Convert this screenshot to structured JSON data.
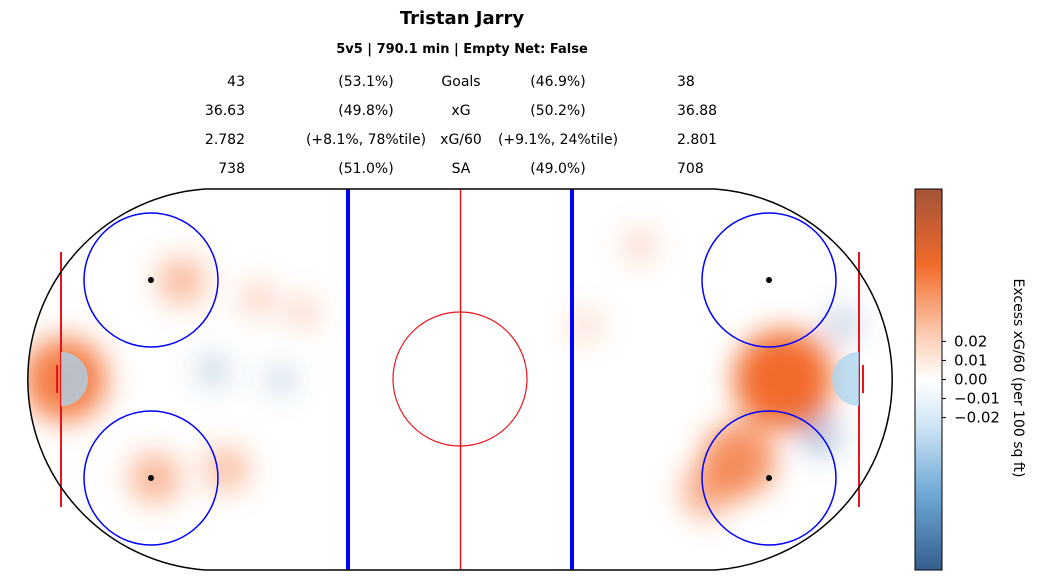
{
  "header": {
    "title": "Tristan Jarry",
    "subtitle": "5v5 | 790.1 min | Empty Net: False"
  },
  "stats": [
    {
      "label": "Goals",
      "left_value": "43",
      "left_pct": "(53.1%)",
      "right_pct": "(46.9%)",
      "right_value": "38"
    },
    {
      "label": "xG",
      "left_value": "36.63",
      "left_pct": "(49.8%)",
      "right_pct": "(50.2%)",
      "right_value": "36.88"
    },
    {
      "label": "xG/60",
      "left_value": "2.782",
      "left_pct": "(+8.1%, 78%tile)",
      "right_pct": "(+9.1%, 24%tile)",
      "right_value": "2.801"
    },
    {
      "label": "SA",
      "left_value": "738",
      "left_pct": "(51.0%)",
      "right_pct": "(49.0%)",
      "right_value": "708"
    }
  ],
  "colors": {
    "rink_outline": "#000000",
    "red_line": "#e8141c",
    "blue_line": "#0000ff",
    "faceoff_circle": "#0000ff",
    "crease": "#a8d4f0",
    "positive": "#f26a2a",
    "negative": "#3b6ea8"
  },
  "chart_data": {
    "type": "heatmap",
    "colorbar": {
      "label": "Excess xG/60 (per 100 sq ft)",
      "ticks": [
        "0.02",
        "0.01",
        "0.00",
        "−0.01",
        "−0.02"
      ],
      "tick_values": [
        0.02,
        0.01,
        0.0,
        -0.01,
        -0.02
      ],
      "range": [
        -0.1,
        0.1
      ]
    },
    "hotspots": [
      {
        "x": -88,
        "y": 0,
        "value": 0.06
      },
      {
        "x": -62,
        "y": 22,
        "value": 0.025
      },
      {
        "x": -68,
        "y": -22,
        "value": 0.028
      },
      {
        "x": -52,
        "y": -20,
        "value": 0.022
      },
      {
        "x": -45,
        "y": 18,
        "value": 0.012
      },
      {
        "x": -35,
        "y": 15,
        "value": 0.01
      },
      {
        "x": 72,
        "y": 0,
        "value": 0.075
      },
      {
        "x": 62,
        "y": -18,
        "value": 0.05
      },
      {
        "x": 55,
        "y": -25,
        "value": 0.03
      },
      {
        "x": 40,
        "y": 30,
        "value": 0.01
      },
      {
        "x": 28,
        "y": 12,
        "value": 0.008
      },
      {
        "x": 80,
        "y": -12,
        "value": -0.02
      },
      {
        "x": 85,
        "y": 12,
        "value": -0.012
      },
      {
        "x": -55,
        "y": 2,
        "value": -0.01
      },
      {
        "x": -40,
        "y": 0,
        "value": -0.008
      }
    ]
  }
}
